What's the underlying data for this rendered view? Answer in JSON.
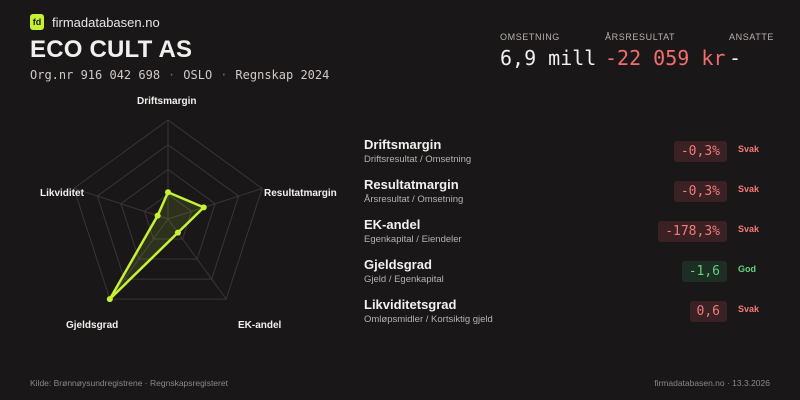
{
  "brand": {
    "logo_text": "fd",
    "name": "firmadatabasen.no"
  },
  "company": {
    "name": "ECO CULT AS",
    "orgnr": "Org.nr 916 042 698",
    "city": "OSLO",
    "period": "Regnskap 2024",
    "separator": "·"
  },
  "kpis": [
    {
      "label": "OMSETNING",
      "value": "6,9 mill"
    },
    {
      "label": "ÅRSRESULTAT",
      "value": "-22 059 kr"
    },
    {
      "label": "ANSATTE",
      "value": "-"
    }
  ],
  "radar": {
    "axes": [
      "Driftsmargin",
      "Resultatmargin",
      "EK-andel",
      "Gjeldsgrad",
      "Likviditet"
    ],
    "values": [
      0.27,
      0.38,
      0.17,
      1.0,
      0.11
    ],
    "color": "#c6f235",
    "grid_color": "#3a3536"
  },
  "metrics": [
    {
      "title": "Driftsmargin",
      "subtitle": "Driftsresultat / Omsetning",
      "value": "-0,3%",
      "verdict": "Svak",
      "status": "bad"
    },
    {
      "title": "Resultatmargin",
      "subtitle": "Årsresultat / Omsetning",
      "value": "-0,3%",
      "verdict": "Svak",
      "status": "bad"
    },
    {
      "title": "EK-andel",
      "subtitle": "Egenkapital / Eiendeler",
      "value": "-178,3%",
      "verdict": "Svak",
      "status": "bad"
    },
    {
      "title": "Gjeldsgrad",
      "subtitle": "Gjeld / Egenkapital",
      "value": "-1,6",
      "verdict": "God",
      "status": "good"
    },
    {
      "title": "Likviditetsgrad",
      "subtitle": "Omløpsmidler / Kortsiktig gjeld",
      "value": "0,6",
      "verdict": "Svak",
      "status": "bad"
    }
  ],
  "footer": {
    "source": "Kilde: Brønnøysundregistrene · Regnskapsregisteret",
    "site_date": "firmadatabasen.no · 13.3.2026"
  }
}
